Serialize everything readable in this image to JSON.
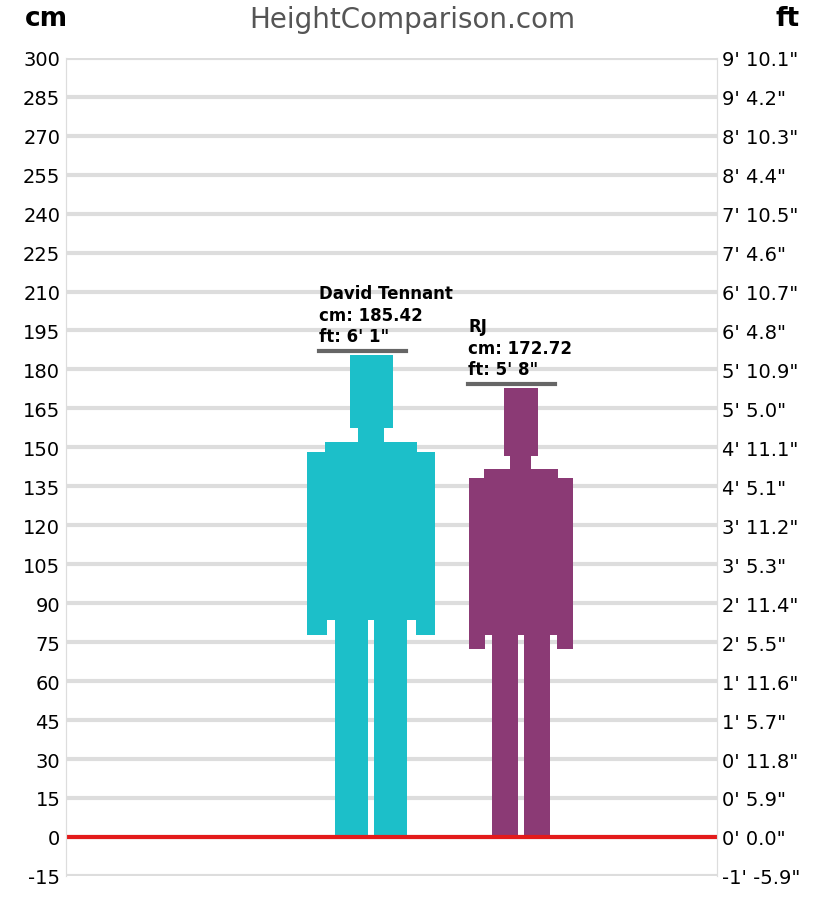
{
  "chart_data": {
    "type": "bar",
    "title": "HeightComparison.com",
    "ylabel": "cm",
    "y2label": "ft",
    "categories": [
      "David Tennant",
      "RJ"
    ],
    "values": [
      185.42,
      172.72
    ],
    "value_labels": [
      "cm: 185.42",
      "cm: 172.72"
    ],
    "ft_labels": [
      "ft: 6' 1\"",
      "ft: 5' 8\""
    ],
    "colors": [
      "#1cbfc9",
      "#8b3a75"
    ],
    "ylim": [
      -15,
      300
    ],
    "yticks": [
      -15,
      0,
      15,
      30,
      45,
      60,
      75,
      90,
      105,
      120,
      135,
      150,
      165,
      180,
      195,
      210,
      225,
      240,
      255,
      270,
      285,
      300
    ],
    "y2lim": [
      -15,
      300
    ],
    "y2ticks": [
      {
        "value": -15,
        "label": "-1' -5.9\""
      },
      {
        "value": 0,
        "label": "0' 0.0\""
      },
      {
        "value": 15,
        "label": "0' 5.9\""
      },
      {
        "value": 30,
        "label": "0' 11.8\""
      },
      {
        "value": 45,
        "label": "1' 5.7\""
      },
      {
        "value": 60,
        "label": "1' 11.6\""
      },
      {
        "value": 75,
        "label": "2' 5.5\""
      },
      {
        "value": 90,
        "label": "2' 11.4\""
      },
      {
        "value": 105,
        "label": "3' 5.3\""
      },
      {
        "value": 120,
        "label": "3' 11.2\""
      },
      {
        "value": 135,
        "label": "4' 5.1\""
      },
      {
        "value": 150,
        "label": "4' 11.1\""
      },
      {
        "value": 165,
        "label": "5' 5.0\""
      },
      {
        "value": 180,
        "label": "5' 10.9\""
      },
      {
        "value": 195,
        "label": "6' 4.8\""
      },
      {
        "value": 210,
        "label": "6' 10.7\""
      },
      {
        "value": 225,
        "label": "7' 4.6\""
      },
      {
        "value": 240,
        "label": "7' 10.5\""
      },
      {
        "value": 255,
        "label": "8' 4.4\""
      },
      {
        "value": 270,
        "label": "8' 10.3\""
      },
      {
        "value": 285,
        "label": "9' 4.2\""
      },
      {
        "value": 300,
        "label": "9' 10.1\""
      }
    ],
    "grid": true,
    "tick_labels": "y"
  }
}
